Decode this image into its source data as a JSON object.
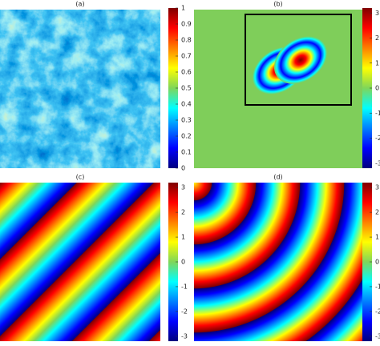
{
  "chart_data": [
    {
      "type": "image",
      "title": "(a)",
      "ylim": [
        0,
        1
      ],
      "yticks": [
        0,
        0.1,
        0.2,
        0.3,
        0.4,
        0.5,
        0.6,
        0.7,
        0.8,
        0.9,
        1
      ]
    },
    {
      "type": "image",
      "title": "(b)",
      "ylim": [
        -3.2,
        3.2
      ],
      "yticks": [
        -3,
        -2,
        -1,
        0,
        1,
        2,
        3
      ]
    },
    {
      "type": "image",
      "title": "(c)",
      "ylim": [
        -3.2,
        3.2
      ],
      "yticks": [
        -3,
        -2,
        -1,
        0,
        1,
        2,
        3
      ]
    },
    {
      "type": "image",
      "title": "(d)",
      "ylim": [
        -3.2,
        3.2
      ],
      "yticks": [
        -3,
        -2,
        -1,
        0,
        1,
        2,
        3
      ]
    }
  ]
}
